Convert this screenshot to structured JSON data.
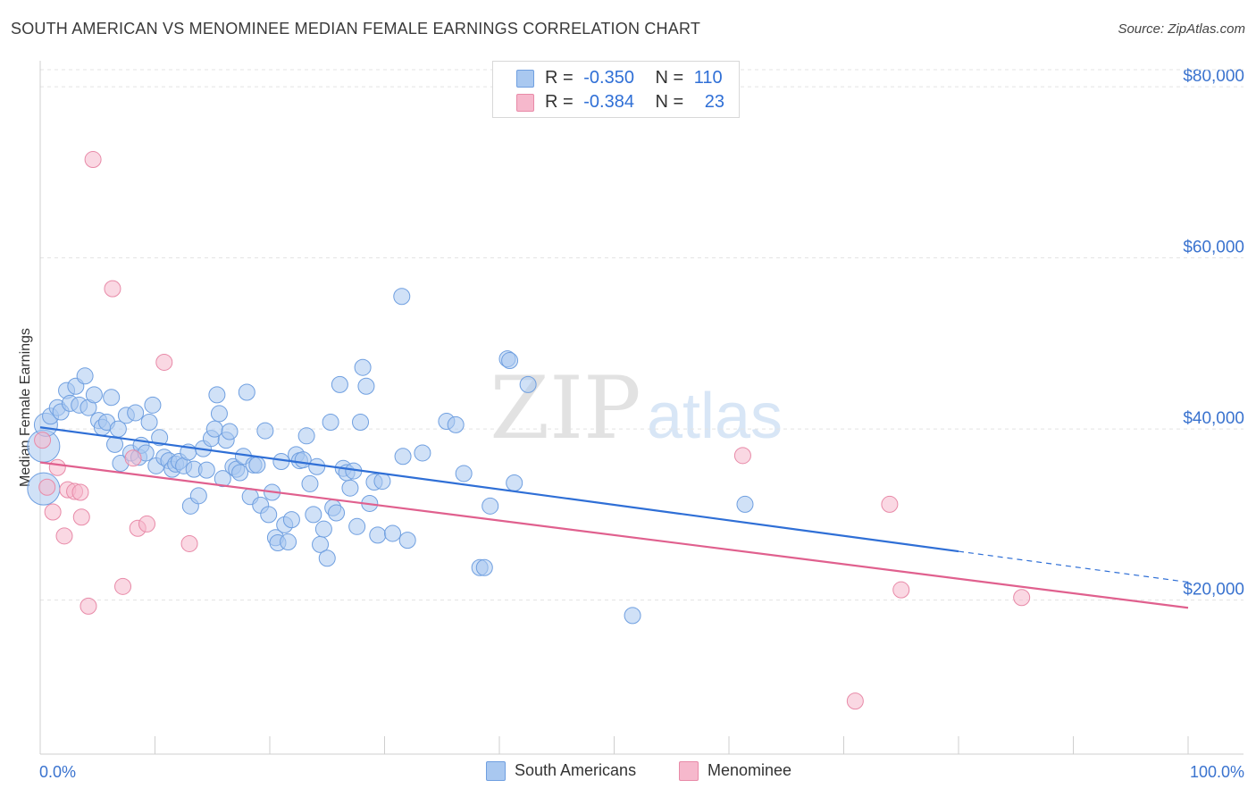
{
  "header": {
    "title": "SOUTH AMERICAN VS MENOMINEE MEDIAN FEMALE EARNINGS CORRELATION CHART",
    "source": "Source: ZipAtlas.com"
  },
  "stats_legend": {
    "rows": [
      {
        "r_label": "R =",
        "r_value": "-0.350",
        "n_label": "N =",
        "n_value": "110",
        "color": "#a9c8f0",
        "stroke": "#6f9fe0"
      },
      {
        "r_label": "R =",
        "r_value": "-0.384",
        "n_label": "N =",
        "n_value": "23",
        "color": "#f6b8cc",
        "stroke": "#e88aa8"
      }
    ]
  },
  "bottom_legend": {
    "items": [
      {
        "label": "South Americans",
        "color": "#a9c8f0",
        "stroke": "#6f9fe0"
      },
      {
        "label": "Menominee",
        "color": "#f6b8cc",
        "stroke": "#e88aa8"
      }
    ]
  },
  "watermark": {
    "zip": "ZIP",
    "atlas": "atlas"
  },
  "chart_data": {
    "type": "scatter",
    "title": "SOUTH AMERICAN VS MENOMINEE MEDIAN FEMALE EARNINGS CORRELATION CHART",
    "xlabel": "",
    "ylabel": "Median Female Earnings",
    "xlim": [
      0,
      100
    ],
    "ylim": [
      2000,
      82000
    ],
    "x_tick_labels": [
      "0.0%",
      "100.0%"
    ],
    "y_ticks": [
      {
        "value": 20000,
        "label": "$20,000"
      },
      {
        "value": 40000,
        "label": "$40,000"
      },
      {
        "value": 60000,
        "label": "$60,000"
      },
      {
        "value": 80000,
        "label": "$80,000"
      }
    ],
    "grid": true,
    "series": [
      {
        "name": "South Americans",
        "color": "#a9c8f0",
        "stroke": "#6f9fe0",
        "trend": {
          "x0": 0,
          "y0": 40200,
          "x1": 80,
          "y1": 25700,
          "dash_to_x": 100,
          "dash_to_y": 22100,
          "color": "#2f6fd6"
        },
        "points": [
          [
            0.3,
            38000,
            3
          ],
          [
            0.3,
            33000,
            3
          ],
          [
            0.5,
            40500,
            2
          ],
          [
            0.9,
            41500,
            1
          ],
          [
            1.5,
            42500,
            1
          ],
          [
            1.8,
            42000,
            1
          ],
          [
            2.3,
            44500,
            1
          ],
          [
            2.6,
            43000,
            1
          ],
          [
            3.1,
            45000,
            1
          ],
          [
            3.4,
            42800,
            1
          ],
          [
            3.9,
            46200,
            1
          ],
          [
            4.2,
            42500,
            1
          ],
          [
            4.7,
            44000,
            1
          ],
          [
            5.1,
            41000,
            1
          ],
          [
            5.4,
            40200,
            1
          ],
          [
            5.8,
            40800,
            1
          ],
          [
            6.2,
            43700,
            1
          ],
          [
            6.5,
            38200,
            1
          ],
          [
            6.8,
            40000,
            1
          ],
          [
            7.0,
            36000,
            1
          ],
          [
            7.5,
            41600,
            1
          ],
          [
            7.9,
            37200,
            1
          ],
          [
            8.3,
            41900,
            1
          ],
          [
            8.6,
            36700,
            1
          ],
          [
            8.8,
            38100,
            1
          ],
          [
            9.2,
            37200,
            1
          ],
          [
            9.5,
            40800,
            1
          ],
          [
            9.8,
            42800,
            1
          ],
          [
            10.1,
            35700,
            1
          ],
          [
            10.4,
            39000,
            1
          ],
          [
            10.8,
            36700,
            1
          ],
          [
            11.2,
            36300,
            1
          ],
          [
            11.5,
            35300,
            1
          ],
          [
            11.8,
            35900,
            1
          ],
          [
            12.1,
            36200,
            1
          ],
          [
            12.5,
            35700,
            1
          ],
          [
            12.9,
            37300,
            1
          ],
          [
            13.1,
            31000,
            1
          ],
          [
            13.4,
            35300,
            1
          ],
          [
            13.8,
            32200,
            1
          ],
          [
            14.2,
            37700,
            1
          ],
          [
            14.5,
            35200,
            1
          ],
          [
            14.9,
            38900,
            1
          ],
          [
            15.2,
            40000,
            1
          ],
          [
            15.4,
            44000,
            1
          ],
          [
            15.6,
            41800,
            1
          ],
          [
            15.9,
            34200,
            1
          ],
          [
            16.2,
            38700,
            1
          ],
          [
            16.5,
            39700,
            1
          ],
          [
            16.8,
            35600,
            1
          ],
          [
            17.1,
            35300,
            1
          ],
          [
            17.4,
            34900,
            1
          ],
          [
            17.7,
            36800,
            1
          ],
          [
            18.0,
            44300,
            1
          ],
          [
            18.3,
            32100,
            1
          ],
          [
            18.6,
            35800,
            1
          ],
          [
            18.9,
            35800,
            1
          ],
          [
            19.2,
            31100,
            1
          ],
          [
            19.6,
            39800,
            1
          ],
          [
            19.9,
            30000,
            1
          ],
          [
            20.2,
            32600,
            1
          ],
          [
            20.5,
            27300,
            1
          ],
          [
            20.7,
            26700,
            1
          ],
          [
            21.0,
            36200,
            1
          ],
          [
            21.3,
            28800,
            1
          ],
          [
            21.6,
            26800,
            1
          ],
          [
            21.9,
            29400,
            1
          ],
          [
            22.3,
            37000,
            1
          ],
          [
            22.6,
            36300,
            1
          ],
          [
            22.9,
            36400,
            1
          ],
          [
            23.2,
            39200,
            1
          ],
          [
            23.5,
            33600,
            1
          ],
          [
            23.8,
            30000,
            1
          ],
          [
            24.1,
            35600,
            1
          ],
          [
            24.4,
            26500,
            1
          ],
          [
            24.7,
            28300,
            1
          ],
          [
            25.0,
            24900,
            1
          ],
          [
            25.3,
            40800,
            1
          ],
          [
            25.5,
            30800,
            1
          ],
          [
            25.8,
            30200,
            1
          ],
          [
            26.1,
            45200,
            1
          ],
          [
            26.4,
            35400,
            1
          ],
          [
            26.7,
            34900,
            1
          ],
          [
            27.0,
            33100,
            1
          ],
          [
            27.3,
            35100,
            1
          ],
          [
            27.6,
            28600,
            1
          ],
          [
            27.9,
            40800,
            1
          ],
          [
            28.1,
            47200,
            1
          ],
          [
            28.4,
            45000,
            1
          ],
          [
            28.7,
            31300,
            1
          ],
          [
            29.1,
            33800,
            1
          ],
          [
            29.4,
            27600,
            1
          ],
          [
            29.8,
            33900,
            1
          ],
          [
            30.7,
            27800,
            1
          ],
          [
            31.6,
            36800,
            1
          ],
          [
            32.0,
            27000,
            1
          ],
          [
            35.4,
            40900,
            1
          ],
          [
            36.2,
            40500,
            1
          ],
          [
            38.3,
            23800,
            1
          ],
          [
            38.7,
            23800,
            1
          ],
          [
            31.5,
            55500,
            1
          ],
          [
            40.7,
            48200,
            1
          ],
          [
            41.3,
            33700,
            1
          ],
          [
            42.5,
            45200,
            1
          ],
          [
            40.9,
            48000,
            1
          ],
          [
            51.6,
            18200,
            1
          ],
          [
            61.4,
            31200,
            1
          ],
          [
            39.2,
            31000,
            1
          ],
          [
            36.9,
            34800,
            1
          ],
          [
            33.3,
            37200,
            1
          ]
        ]
      },
      {
        "name": "Menominee",
        "color": "#f6b8cc",
        "stroke": "#e88aa8",
        "trend": {
          "x0": 0,
          "y0": 36100,
          "x1": 100,
          "y1": 19100,
          "color": "#e0608e"
        },
        "points": [
          [
            0.2,
            38700,
            1
          ],
          [
            0.6,
            33200,
            1
          ],
          [
            1.1,
            30300,
            1
          ],
          [
            1.5,
            35500,
            1
          ],
          [
            2.1,
            27500,
            1
          ],
          [
            2.4,
            32900,
            1
          ],
          [
            3.0,
            32700,
            1
          ],
          [
            3.5,
            32600,
            1
          ],
          [
            3.6,
            29700,
            1
          ],
          [
            4.2,
            19300,
            1
          ],
          [
            4.6,
            71500,
            1
          ],
          [
            6.3,
            56400,
            1
          ],
          [
            7.2,
            21600,
            1
          ],
          [
            8.1,
            36600,
            1
          ],
          [
            8.5,
            28400,
            1
          ],
          [
            9.3,
            28900,
            1
          ],
          [
            10.8,
            47800,
            1
          ],
          [
            13.0,
            26600,
            1
          ],
          [
            61.2,
            36900,
            1
          ],
          [
            71.0,
            8200,
            1
          ],
          [
            74.0,
            31200,
            1
          ],
          [
            75.0,
            21200,
            1
          ],
          [
            85.5,
            20300,
            1
          ]
        ]
      }
    ]
  }
}
